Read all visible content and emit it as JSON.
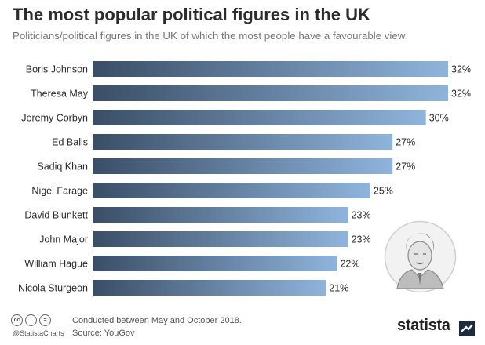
{
  "title": "The most popular political figures in the UK",
  "subtitle": "Politicians/political figures in the UK of which the most people have a favourable view",
  "chart_data": {
    "type": "bar",
    "orientation": "horizontal",
    "title": "The most popular political figures in the UK",
    "subtitle": "Politicians/political figures in the UK of which the most people have a favourable view",
    "categories": [
      "Boris Johnson",
      "Theresa May",
      "Jeremy Corbyn",
      "Ed Balls",
      "Sadiq Khan",
      "Nigel Farage",
      "David Blunkett",
      "John Major",
      "William Hague",
      "Nicola Sturgeon"
    ],
    "values": [
      32,
      32,
      30,
      27,
      27,
      25,
      23,
      23,
      22,
      21
    ],
    "value_labels": [
      "32%",
      "32%",
      "30%",
      "27%",
      "27%",
      "25%",
      "23%",
      "23%",
      "22%",
      "21%"
    ],
    "unit": "%",
    "xlim": [
      0,
      32
    ],
    "grid": false,
    "legend": "none",
    "colors": {
      "bar_start": "#3a4e66",
      "bar_end": "#8fb4dc"
    }
  },
  "footer": {
    "note": "Conducted between May and October 2018.",
    "source": "Source: YouGov",
    "handle": "@StatistaCharts",
    "brand": "statista",
    "license_icons": [
      "cc",
      "i",
      "="
    ]
  }
}
